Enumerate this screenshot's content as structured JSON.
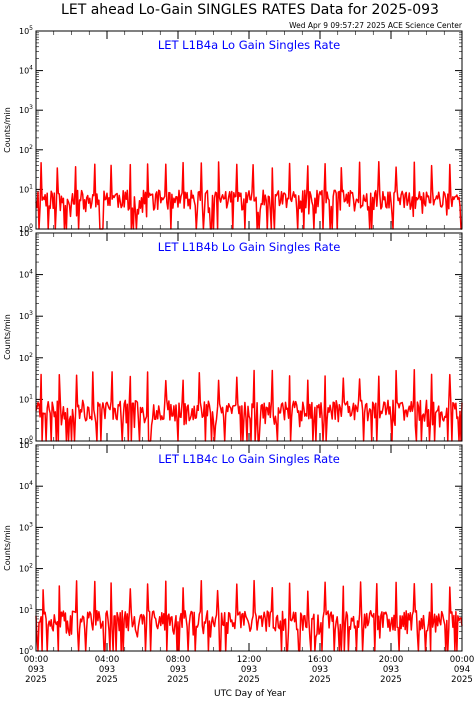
{
  "chart_data": {
    "type": "line",
    "title": "LET ahead Lo-Gain SINGLES RATES Data for 2025-093",
    "subtitle": "Wed Apr  9 09:57:27 2025 ACE Science Center",
    "xlabel": "UTC Day of Year",
    "ylabel": "Counts/min",
    "yscale": "log",
    "ylim": [
      1,
      100000
    ],
    "xlim_hours": [
      0,
      24
    ],
    "line_color": "#ff0000",
    "title_color": "#000000",
    "panel_label_color": "#0000ff",
    "x_ticks": [
      {
        "hour": 0,
        "time": "00:00",
        "day": "093",
        "year": "2025"
      },
      {
        "hour": 4,
        "time": "04:00",
        "day": "093",
        "year": "2025"
      },
      {
        "hour": 8,
        "time": "08:00",
        "day": "093",
        "year": "2025"
      },
      {
        "hour": 12,
        "time": "12:00",
        "day": "093",
        "year": "2025"
      },
      {
        "hour": 16,
        "time": "16:00",
        "day": "093",
        "year": "2025"
      },
      {
        "hour": 20,
        "time": "20:00",
        "day": "093",
        "year": "2025"
      },
      {
        "hour": 24,
        "time": "00:00",
        "day": "094",
        "year": "2025"
      }
    ],
    "y_ticks": [
      {
        "value": 1,
        "base": "10",
        "exp": "0"
      },
      {
        "value": 10,
        "base": "10",
        "exp": "1"
      },
      {
        "value": 100,
        "base": "10",
        "exp": "2"
      },
      {
        "value": 1000,
        "base": "10",
        "exp": "3"
      },
      {
        "value": 10000,
        "base": "10",
        "exp": "4"
      },
      {
        "value": 100000,
        "base": "10",
        "exp": "5"
      }
    ],
    "panels": [
      {
        "label": "LET L1B4a Lo Gain Singles Rate",
        "series_seed": 11,
        "typical_rate": 5,
        "spike_hours": [
          0.3,
          1.2,
          2.2,
          3.3,
          4.2,
          5.3,
          6.3,
          7.3,
          8.3,
          9.3,
          10.3,
          11.3,
          12.2,
          13.3,
          14.3,
          15.3,
          16.3,
          17.2,
          18.2,
          19.3,
          20.3,
          21.3,
          22.3,
          23.3
        ],
        "spike_value": 40
      },
      {
        "label": "LET L1B4b Lo Gain Singles Rate",
        "series_seed": 23,
        "typical_rate": 5,
        "spike_hours": [
          0.3,
          1.3,
          2.3,
          3.2,
          4.3,
          5.3,
          6.3,
          7.3,
          8.3,
          9.2,
          10.3,
          11.3,
          12.3,
          13.3,
          14.3,
          15.3,
          16.3,
          17.3,
          18.2,
          19.3,
          20.3,
          21.3,
          22.3,
          23.3
        ],
        "spike_value": 40
      },
      {
        "label": "LET L1B4c Lo Gain Singles Rate",
        "series_seed": 37,
        "typical_rate": 5,
        "spike_hours": [
          0.4,
          1.3,
          2.3,
          3.3,
          4.2,
          5.3,
          6.3,
          7.3,
          8.3,
          9.3,
          10.2,
          11.3,
          12.3,
          13.3,
          14.3,
          15.3,
          16.3,
          17.3,
          18.3,
          19.2,
          20.3,
          21.3,
          22.3,
          23.3
        ],
        "spike_value": 40
      }
    ]
  }
}
